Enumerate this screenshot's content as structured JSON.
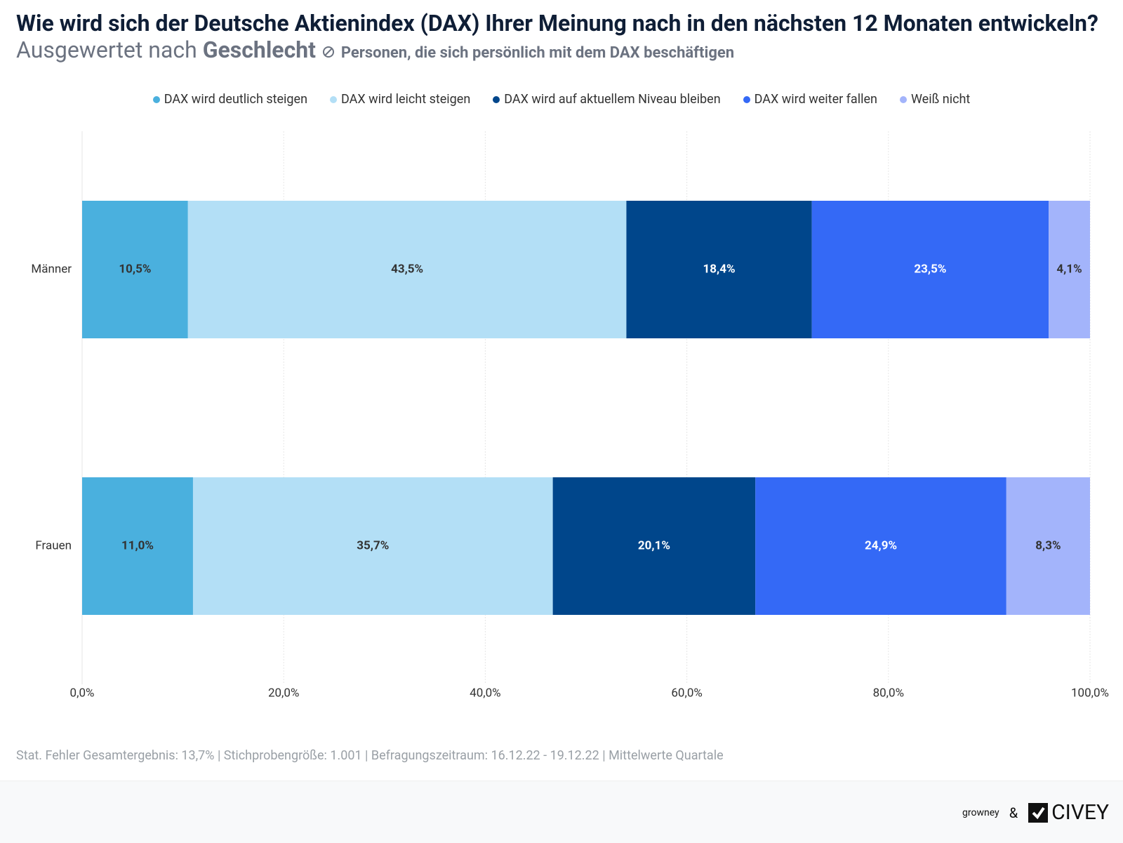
{
  "chart_data": {
    "type": "stacked-bar-horizontal",
    "title": "Wie wird sich der Deutsche Aktienindex (DAX) Ihrer Meinung nach in den nächsten 12 Monaten entwickeln?",
    "subtitle": "Ausgewertet nach",
    "subtitle_emphasis": "Geschlecht",
    "note": "Personen, die sich persönlich mit dem DAX beschäftigen",
    "categories": [
      "Männer",
      "Frauen"
    ],
    "series": [
      {
        "name": "DAX wird deutlich steigen",
        "color": "#4ab0de",
        "values": [
          10.5,
          11.0
        ],
        "value_labels": [
          "10,5%",
          "11,0%"
        ]
      },
      {
        "name": "DAX wird leicht steigen",
        "color": "#b3dff6",
        "values": [
          43.5,
          35.7
        ],
        "value_labels": [
          "43,5%",
          "35,7%"
        ]
      },
      {
        "name": "DAX wird auf aktuellem Niveau bleiben",
        "color": "#00468b",
        "values": [
          18.4,
          20.1
        ],
        "value_labels": [
          "18,4%",
          "20,1%"
        ]
      },
      {
        "name": "DAX wird weiter fallen",
        "color": "#3469f6",
        "values": [
          23.5,
          24.9
        ],
        "value_labels": [
          "23,5%",
          "24,9%"
        ]
      },
      {
        "name": "Weiß nicht",
        "color": "#a3b4fb",
        "values": [
          4.1,
          8.3
        ],
        "value_labels": [
          "4,1%",
          "8,3%"
        ]
      }
    ],
    "xlim": [
      0,
      100
    ],
    "xticks": [
      {
        "value": 0,
        "label": "0,0%"
      },
      {
        "value": 20,
        "label": "20,0%"
      },
      {
        "value": 40,
        "label": "40,0%"
      },
      {
        "value": 60,
        "label": "60,0%"
      },
      {
        "value": 80,
        "label": "80,0%"
      },
      {
        "value": 100,
        "label": "100,0%"
      }
    ],
    "grid": true,
    "legend": "top",
    "footer": "Stat. Fehler Gesamtergebnis: 13,7% | Stichprobengröße: 1.001 | Befragungszeitraum: 16.12.22 - 19.12.22 | Mittelwerte Quartale",
    "branding": [
      "growney",
      "&",
      "CIVEY"
    ]
  }
}
